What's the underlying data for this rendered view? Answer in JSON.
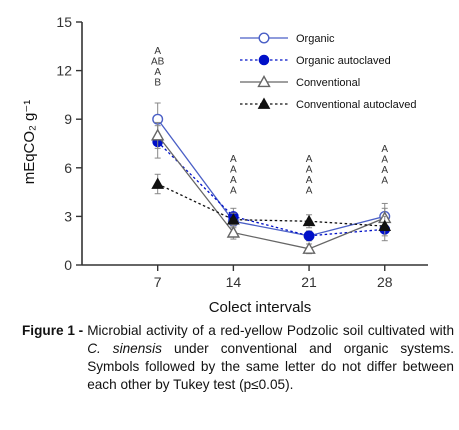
{
  "chart_data": {
    "type": "line",
    "xlabel": "Colect intervals",
    "ylabel": "mEqCO₂ g⁻¹",
    "x": [
      7,
      14,
      21,
      28
    ],
    "xlim": [
      0,
      32
    ],
    "ylim": [
      0,
      15
    ],
    "yticks": [
      0,
      3,
      6,
      9,
      12,
      15
    ],
    "legend": "top-right",
    "series": [
      {
        "name": "Organic",
        "values": [
          9.0,
          2.7,
          1.8,
          3.0
        ],
        "err": [
          1.0,
          0.4,
          0.3,
          0.8
        ],
        "color": "#4a5fc6",
        "marker": "open-circle",
        "dash": "solid"
      },
      {
        "name": "Organic autoclaved",
        "values": [
          7.6,
          3.0,
          1.8,
          2.2
        ],
        "err": [
          1.0,
          0.5,
          0.3,
          0.7
        ],
        "color": "#0010c8",
        "marker": "filled-circle",
        "dash": "dotted"
      },
      {
        "name": "Conventional",
        "values": [
          8.0,
          2.0,
          1.0,
          2.9
        ],
        "err": [
          0.8,
          0.4,
          0.3,
          0.6
        ],
        "color": "#666666",
        "marker": "open-triangle",
        "dash": "solid"
      },
      {
        "name": "Conventional autoclaved",
        "values": [
          5.0,
          2.8,
          2.7,
          2.4
        ],
        "err": [
          0.6,
          0.4,
          0.4,
          0.6
        ],
        "color": "#111111",
        "marker": "filled-triangle",
        "dash": "dotted"
      }
    ],
    "annotations": [
      {
        "x": 7,
        "letters": [
          "A",
          "AB",
          "A",
          "B"
        ]
      },
      {
        "x": 14,
        "letters": [
          "A",
          "A",
          "A",
          "A"
        ]
      },
      {
        "x": 21,
        "letters": [
          "A",
          "A",
          "A",
          "A"
        ]
      },
      {
        "x": 28,
        "letters": [
          "A",
          "A",
          "A",
          "A"
        ]
      }
    ]
  },
  "caption": {
    "label": "Figure 1 -",
    "text_before": "Microbial activity of a red-yellow Podzolic soil cultivated with ",
    "species": "C. sinensis",
    "text_after": " under conventional and organic systems. Symbols followed by the same letter do not differ between each other by Tukey test (p≤0.05)."
  }
}
